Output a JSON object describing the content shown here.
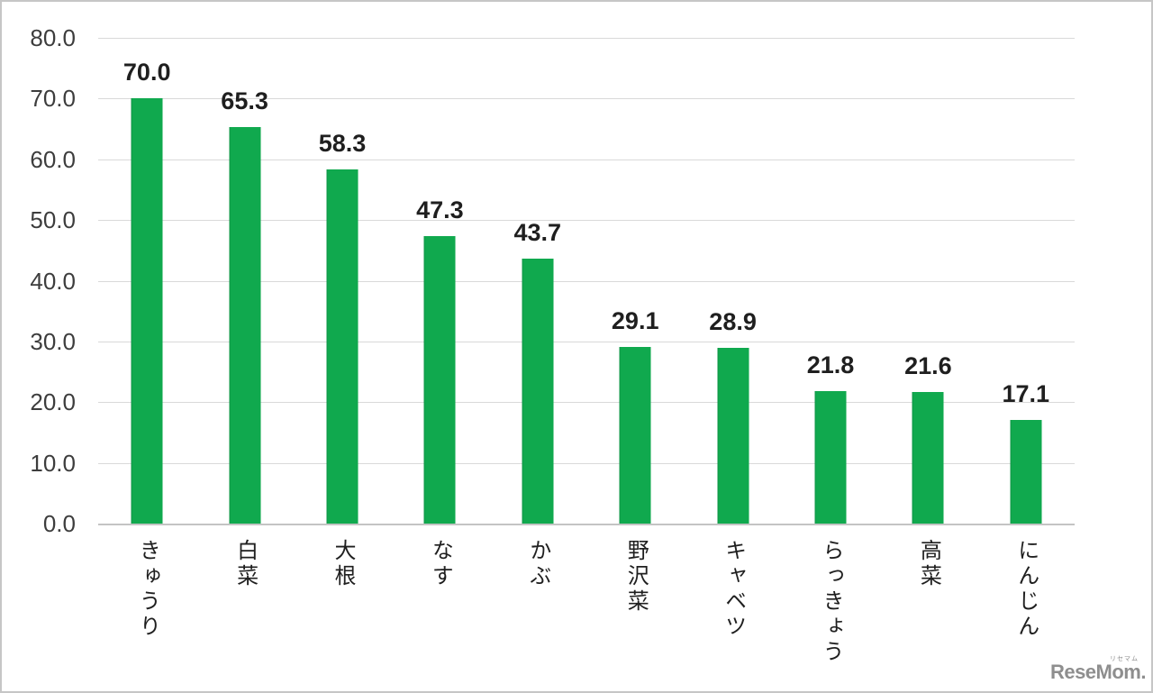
{
  "chart_data": {
    "type": "bar",
    "categories": [
      "きゅうり",
      "白菜",
      "大根",
      "なす",
      "かぶ",
      "野沢菜",
      "キャベツ",
      "らっきょう",
      "高菜",
      "にんじん"
    ],
    "values": [
      70.0,
      65.3,
      58.3,
      47.3,
      43.7,
      29.1,
      28.9,
      21.8,
      21.6,
      17.1
    ],
    "data_labels": [
      "70.0",
      "65.3",
      "58.3",
      "47.3",
      "43.7",
      "29.1",
      "28.9",
      "21.8",
      "21.6",
      "17.1"
    ],
    "title": "",
    "xlabel": "",
    "ylabel": "",
    "ylim": [
      0,
      80
    ],
    "ytick_interval": 10,
    "ytick_labels": [
      "0.0",
      "10.0",
      "20.0",
      "30.0",
      "40.0",
      "50.0",
      "60.0",
      "70.0",
      "80.0"
    ],
    "grid": true,
    "legend": false,
    "bar_color": "#10a94e",
    "gridline_color": "#d9d9d9",
    "axis_line_color": "#c4c4c4",
    "tick_label_color": "#3d3d3d",
    "data_label_color": "#1f1f1f"
  },
  "watermark": {
    "text": "ReseMom.",
    "ruby": "リセマム",
    "color": "#8e8e8e"
  }
}
